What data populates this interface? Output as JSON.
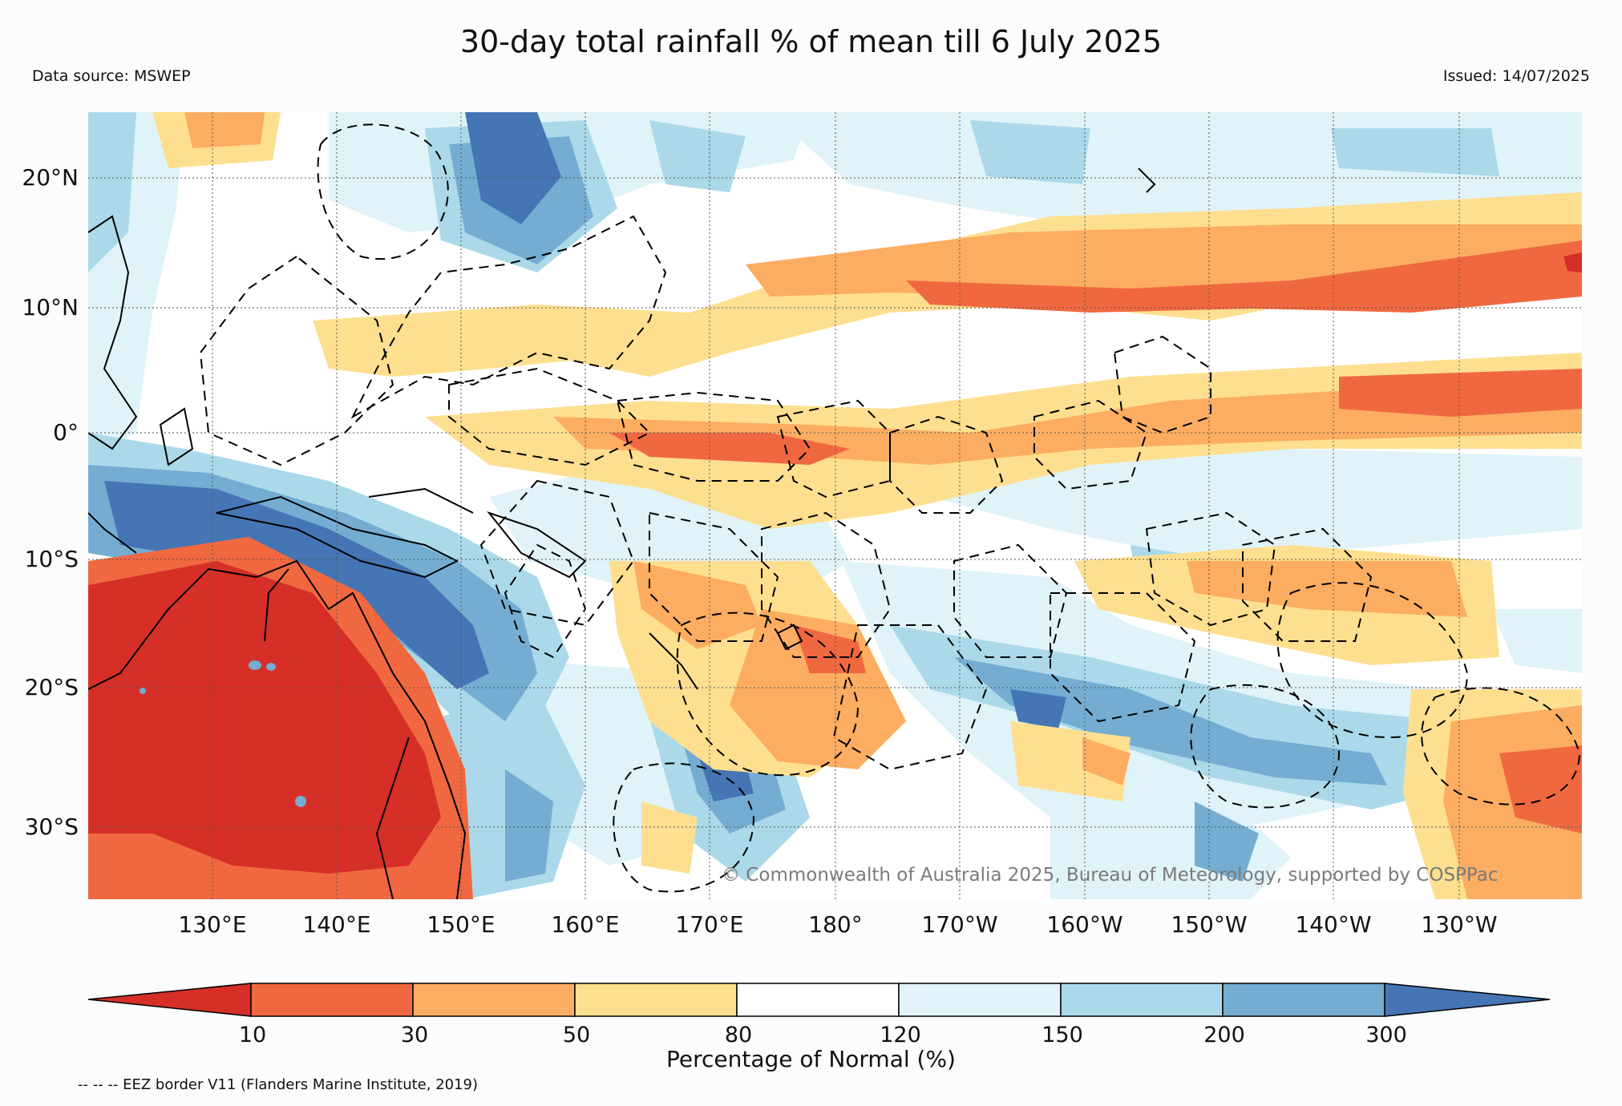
{
  "header": {
    "title": "30-day total rainfall % of mean till 6 July 2025",
    "source": "Data source: MSWEP",
    "issued": "Issued: 14/07/2025"
  },
  "map": {
    "lat_labels": [
      "20°N",
      "10°N",
      "0°",
      "10°S",
      "20°S",
      "30°S"
    ],
    "lon_labels": [
      "130°E",
      "140°E",
      "150°E",
      "160°E",
      "170°E",
      "180°",
      "170°W",
      "160°W",
      "150°W",
      "140°W",
      "130°W"
    ],
    "copyright": "© Commonwealth of Australia 2025, Bureau of Meteorology, supported by COSPPac"
  },
  "colorbar": {
    "title": "Percentage of Normal (%)",
    "ticks": [
      "10",
      "30",
      "50",
      "80",
      "120",
      "150",
      "200",
      "300"
    ],
    "colors": [
      "#d62f27",
      "#f06840",
      "#fcad61",
      "#fedf8f",
      "#ffffff",
      "#e0f3f8",
      "#abd9e9",
      "#74add1",
      "#4575b4"
    ]
  },
  "footer": {
    "eez_note": "-- -- -- EEZ border V11 (Flanders Marine Institute, 2019)"
  }
}
